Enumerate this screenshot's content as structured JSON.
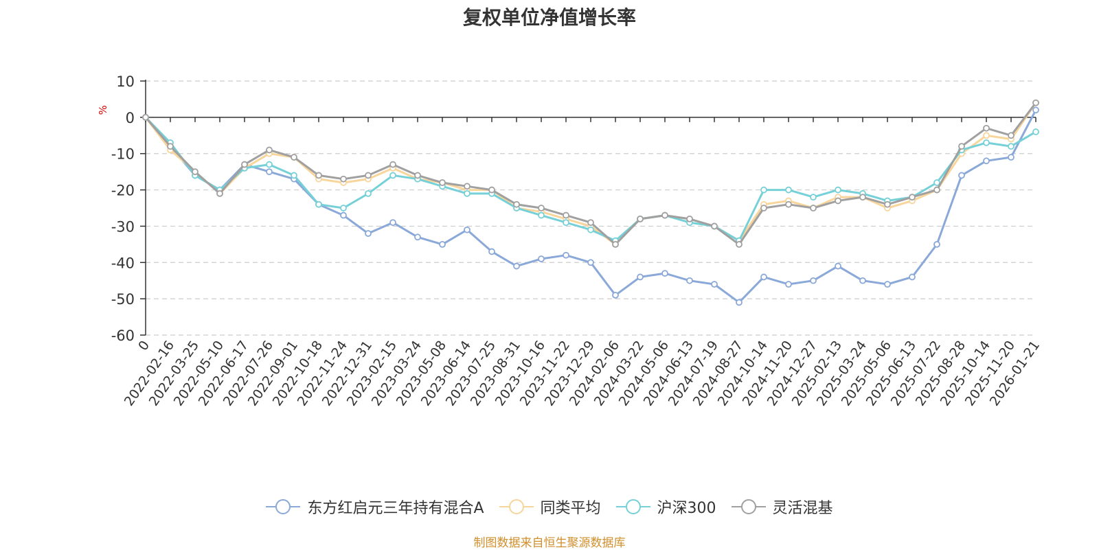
{
  "chart_data": {
    "type": "line",
    "title": "复权单位净值增长率",
    "ylabel": "%",
    "ylim": [
      -60,
      10
    ],
    "yticks": [
      10,
      0,
      -10,
      -20,
      -30,
      -40,
      -50,
      -60
    ],
    "grid": true,
    "legend_position": "bottom",
    "x_tick_labels": [
      "0",
      "2022-02-16",
      "2022-03-25",
      "2022-05-10",
      "2022-06-17",
      "2022-07-26",
      "2022-09-01",
      "2022-10-18",
      "2022-11-24",
      "2022-12-31",
      "2023-02-15",
      "2023-03-24",
      "2023-05-08",
      "2023-06-14",
      "2023-07-25",
      "2023-08-31",
      "2023-10-16",
      "2023-11-22",
      "2023-12-29",
      "2024-02-06",
      "2024-03-22",
      "2024-05-06",
      "2024-06-13",
      "2024-07-19",
      "2024-08-27",
      "2024-10-14",
      "2024-11-20",
      "2024-12-27",
      "2025-02-13",
      "2025-03-24",
      "2025-05-06",
      "2025-06-13",
      "2025-07-22",
      "2025-08-28",
      "2025-10-14",
      "2025-11-20",
      "2026-01-21"
    ],
    "series": [
      {
        "name": "东方红启元三年持有混合A",
        "color": "#8aa8d8",
        "values": [
          0,
          -8,
          -16,
          -20,
          -13,
          -15,
          -17,
          -24,
          -27,
          -32,
          -29,
          -33,
          -35,
          -31,
          -37,
          -41,
          -39,
          -38,
          -40,
          -49,
          -44,
          -43,
          -45,
          -46,
          -51,
          -44,
          -46,
          -45,
          -41,
          -45,
          -46,
          -44,
          -35,
          -16,
          -12,
          -11,
          2
        ]
      },
      {
        "name": "同类平均",
        "color": "#f8d59a",
        "values": [
          0,
          -9,
          -15,
          -21,
          -14,
          -10,
          -11,
          -17,
          -18,
          -17,
          -14,
          -17,
          -18,
          -20,
          -20,
          -25,
          -26,
          -28,
          -30,
          -35,
          -28,
          -27,
          -28,
          -30,
          -34,
          -24,
          -23,
          -25,
          -22,
          -22,
          -25,
          -23,
          -20,
          -10,
          -5,
          -6,
          4
        ]
      },
      {
        "name": "沪深300",
        "color": "#76d0d8",
        "values": [
          0,
          -7,
          -16,
          -20,
          -14,
          -13,
          -16,
          -24,
          -25,
          -21,
          -16,
          -17,
          -19,
          -21,
          -21,
          -25,
          -27,
          -29,
          -31,
          -34,
          -28,
          -27,
          -29,
          -30,
          -34,
          -20,
          -20,
          -22,
          -20,
          -21,
          -23,
          -22,
          -18,
          -9,
          -7,
          -8,
          -4
        ]
      },
      {
        "name": "灵活混基",
        "color": "#a0a0a0",
        "values": [
          0,
          -8,
          -15,
          -21,
          -13,
          -9,
          -11,
          -16,
          -17,
          -16,
          -13,
          -16,
          -18,
          -19,
          -20,
          -24,
          -25,
          -27,
          -29,
          -35,
          -28,
          -27,
          -28,
          -30,
          -35,
          -25,
          -24,
          -25,
          -23,
          -22,
          -24,
          -22,
          -20,
          -8,
          -3,
          -5,
          4
        ]
      }
    ]
  },
  "source_text": "制图数据来自恒生聚源数据库"
}
